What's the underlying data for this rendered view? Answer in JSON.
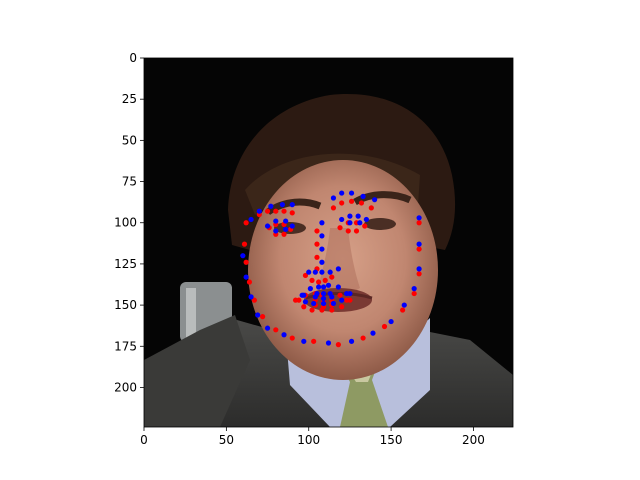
{
  "chart_data": {
    "type": "scatter",
    "title": "",
    "xlabel": "",
    "ylabel": "",
    "xlim": [
      0,
      224
    ],
    "ylim": [
      224,
      0
    ],
    "y_inverted": true,
    "grid": false,
    "legend": "none",
    "background": "face-photograph",
    "x_ticks": [
      0,
      50,
      100,
      150,
      200
    ],
    "y_ticks": [
      0,
      25,
      50,
      75,
      100,
      125,
      150,
      175,
      200
    ],
    "series": [
      {
        "color": "#ff0000",
        "marker": "dot",
        "points": [
          [
            62,
            100
          ],
          [
            61,
            113
          ],
          [
            62,
            124
          ],
          [
            64,
            136
          ],
          [
            67,
            147
          ],
          [
            72,
            157
          ],
          [
            80,
            165
          ],
          [
            90,
            170
          ],
          [
            103,
            172
          ],
          [
            118,
            174
          ],
          [
            133,
            170
          ],
          [
            146,
            163
          ],
          [
            157,
            153
          ],
          [
            164,
            143
          ],
          [
            167,
            131
          ],
          [
            167,
            116
          ],
          [
            167,
            100
          ],
          [
            70,
            95
          ],
          [
            75,
            93
          ],
          [
            80,
            93
          ],
          [
            85,
            93
          ],
          [
            90,
            94
          ],
          [
            115,
            91
          ],
          [
            120,
            88
          ],
          [
            126,
            87
          ],
          [
            132,
            88
          ],
          [
            138,
            91
          ],
          [
            105,
            105
          ],
          [
            105,
            113
          ],
          [
            105,
            121
          ],
          [
            105,
            128
          ],
          [
            98,
            132
          ],
          [
            102,
            135
          ],
          [
            106,
            136
          ],
          [
            110,
            135
          ],
          [
            114,
            133
          ],
          [
            76,
            103
          ],
          [
            80,
            101
          ],
          [
            85,
            101
          ],
          [
            89,
            104
          ],
          [
            85,
            107
          ],
          [
            80,
            107
          ],
          [
            119,
            103
          ],
          [
            124,
            100
          ],
          [
            129,
            100
          ],
          [
            134,
            102
          ],
          [
            129,
            105
          ],
          [
            124,
            105
          ],
          [
            92,
            147
          ],
          [
            98,
            144
          ],
          [
            104,
            143
          ],
          [
            108,
            144
          ],
          [
            113,
            143
          ],
          [
            119,
            144
          ],
          [
            125,
            147
          ],
          [
            120,
            151
          ],
          [
            114,
            153
          ],
          [
            108,
            153
          ],
          [
            102,
            153
          ],
          [
            97,
            151
          ],
          [
            94,
            147
          ],
          [
            104,
            147
          ],
          [
            109,
            148
          ],
          [
            114,
            147
          ],
          [
            123,
            147
          ],
          [
            114,
            150
          ],
          [
            109,
            151
          ],
          [
            104,
            150
          ]
        ]
      },
      {
        "color": "#0000ff",
        "marker": "dot",
        "points": [
          [
            60,
            120
          ],
          [
            62,
            133
          ],
          [
            65,
            145
          ],
          [
            69,
            156
          ],
          [
            75,
            164
          ],
          [
            85,
            168
          ],
          [
            97,
            172
          ],
          [
            112,
            173
          ],
          [
            126,
            172
          ],
          [
            139,
            167
          ],
          [
            150,
            160
          ],
          [
            158,
            150
          ],
          [
            164,
            140
          ],
          [
            167,
            128
          ],
          [
            167,
            113
          ],
          [
            167,
            97
          ],
          [
            65,
            98
          ],
          [
            70,
            93
          ],
          [
            77,
            90
          ],
          [
            84,
            89
          ],
          [
            90,
            89
          ],
          [
            115,
            85
          ],
          [
            120,
            82
          ],
          [
            126,
            82
          ],
          [
            133,
            84
          ],
          [
            140,
            86
          ],
          [
            108,
            100
          ],
          [
            108,
            108
          ],
          [
            108,
            116
          ],
          [
            108,
            124
          ],
          [
            100,
            130
          ],
          [
            104,
            130
          ],
          [
            108,
            130
          ],
          [
            113,
            130
          ],
          [
            118,
            128
          ],
          [
            75,
            102
          ],
          [
            80,
            99
          ],
          [
            86,
            99
          ],
          [
            90,
            102
          ],
          [
            86,
            104
          ],
          [
            80,
            105
          ],
          [
            120,
            98
          ],
          [
            125,
            96
          ],
          [
            130,
            96
          ],
          [
            135,
            98
          ],
          [
            131,
            100
          ],
          [
            125,
            100
          ],
          [
            96,
            144
          ],
          [
            101,
            140
          ],
          [
            106,
            139
          ],
          [
            109,
            139
          ],
          [
            112,
            138
          ],
          [
            118,
            139
          ],
          [
            125,
            143
          ],
          [
            120,
            147
          ],
          [
            115,
            149
          ],
          [
            109,
            149
          ],
          [
            103,
            149
          ],
          [
            98,
            148
          ],
          [
            97,
            144
          ],
          [
            105,
            143
          ],
          [
            109,
            143
          ],
          [
            113,
            143
          ],
          [
            123,
            143
          ],
          [
            114,
            145
          ],
          [
            109,
            146
          ],
          [
            104,
            145
          ]
        ]
      }
    ]
  }
}
